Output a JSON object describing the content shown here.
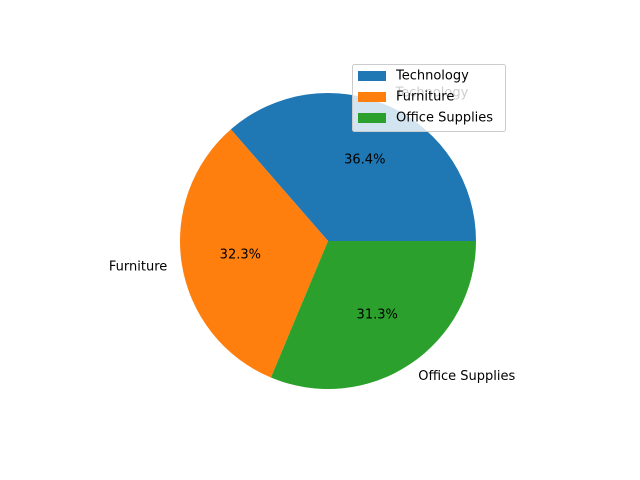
{
  "chart_data": {
    "type": "pie",
    "categories": [
      "Technology",
      "Furniture",
      "Office Supplies"
    ],
    "values": [
      36.4,
      32.3,
      31.3
    ],
    "percent_labels": [
      "36.4%",
      "32.3%",
      "31.3%"
    ],
    "colors": [
      "#1f77b4",
      "#ff7f0e",
      "#2ca02c"
    ],
    "start_angle_deg": 0,
    "direction": "counterclockwise",
    "legend": {
      "placement": "upper-right",
      "entries": [
        "Technology",
        "Furniture",
        "Office Supplies"
      ]
    }
  }
}
